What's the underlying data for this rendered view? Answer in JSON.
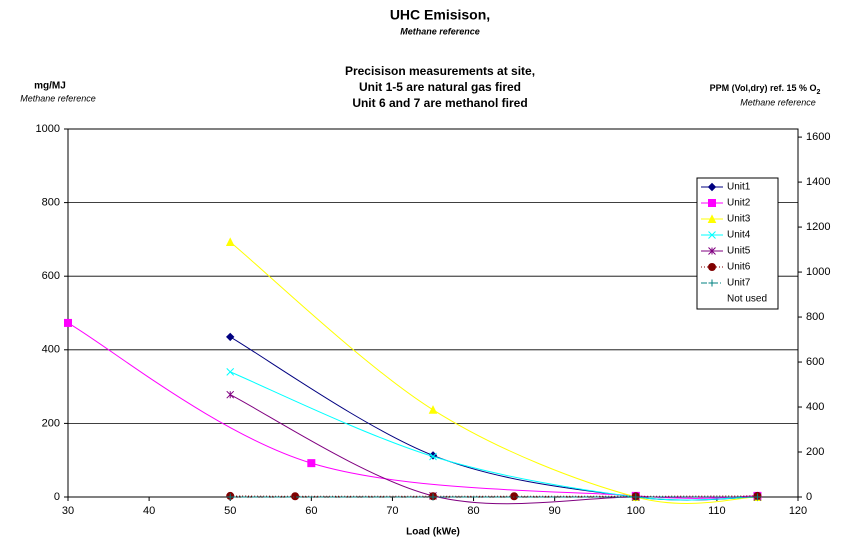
{
  "chart_data": {
    "type": "line",
    "title": "UHC Emisison,",
    "title_note": "Methane reference",
    "subtitle": [
      "Precisison measurements at site,",
      "Unit 1-5 are natural gas fired",
      "Unit 6 and 7 are methanol fired"
    ],
    "y_label": "mg/MJ",
    "y_label_note": "Methane reference",
    "y2_label": "PPM (Vol,dry) ref. 15 % O",
    "y2_label_sub": "2",
    "y2_label_note": "Methane reference",
    "x_label": "Load (kWe)",
    "xlim": [
      30,
      120
    ],
    "xticks": [
      30,
      40,
      50,
      60,
      70,
      80,
      90,
      100,
      110,
      120
    ],
    "ylim": [
      0,
      1000
    ],
    "yticks": [
      0,
      200,
      400,
      600,
      800,
      1000
    ],
    "y2lim": [
      0,
      1636
    ],
    "y2ticks": [
      0,
      200,
      400,
      600,
      800,
      1000,
      1200,
      1400,
      1600
    ],
    "grid": true,
    "legend": "right",
    "legend_note": "Not used",
    "series": [
      {
        "name": "Unit1",
        "color": "#000080",
        "marker": "diamond",
        "dash": "",
        "x": [
          50,
          75,
          100,
          115
        ],
        "values": [
          435,
          113,
          0,
          0
        ]
      },
      {
        "name": "Unit2",
        "color": "#ff00ff",
        "marker": "square",
        "dash": "",
        "x": [
          30,
          60,
          100,
          115
        ],
        "values": [
          473,
          92,
          3,
          3
        ]
      },
      {
        "name": "Unit3",
        "color": "#ffff00",
        "marker": "triangle",
        "dash": "",
        "x": [
          50,
          75,
          100,
          115
        ],
        "values": [
          693,
          237,
          0,
          0
        ]
      },
      {
        "name": "Unit4",
        "color": "#00ffff",
        "marker": "x",
        "dash": "",
        "x": [
          50,
          75,
          100,
          115
        ],
        "values": [
          340,
          110,
          0,
          0
        ]
      },
      {
        "name": "Unit5",
        "color": "#800080",
        "marker": "star",
        "dash": "",
        "x": [
          50,
          75,
          100,
          115
        ],
        "values": [
          278,
          3,
          0,
          0
        ]
      },
      {
        "name": "Unit6",
        "color": "#800000",
        "marker": "circle",
        "dash": "1 2",
        "x": [
          50,
          58,
          75,
          85,
          100,
          115
        ],
        "values": [
          3,
          2,
          2,
          2,
          2,
          3
        ]
      },
      {
        "name": "Unit7",
        "color": "#008080",
        "marker": "plus",
        "dash": "6 2 1 2",
        "x": [
          50,
          75,
          100,
          115
        ],
        "values": [
          0,
          0,
          0,
          0
        ]
      }
    ]
  }
}
